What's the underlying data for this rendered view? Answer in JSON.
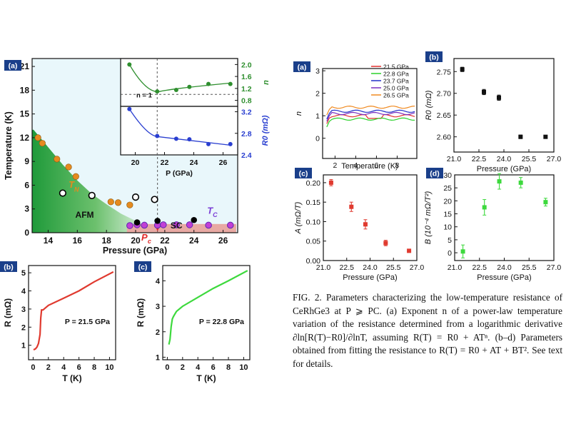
{
  "colors": {
    "afm_green": "#2e9e3e",
    "sc_red": "#d9534f",
    "tn_orange": "#e58a1f",
    "tc_purple": "#7b3fd6",
    "n_green": "#2f8f2f",
    "r0_blue": "#2a3fd0",
    "red_data": "#e03a2f",
    "green_data": "#3dd93d"
  },
  "caption": {
    "text": "FIG. 2. Parameters characterizing the low-temperature resistance of CeRhGe3 at P ⩾ PC. (a) Exponent n of a power-law temperature variation of the resistance determined from a logarithmic derivative ∂ln[R(T)−R0]/∂lnT, assuming R(T) = R0 + ATⁿ. (b–d) Parameters obtained from fitting the resistance to R(T) = R0 + AT + BT². See text for details."
  },
  "chart_data": [
    {
      "id": "left-a",
      "type": "scatter",
      "panel_label": "(a)",
      "xlabel": "Pressure (GPa)",
      "ylabel": "Temperature (K)",
      "xlim": [
        12.9,
        27
      ],
      "ylim": [
        0,
        22
      ],
      "xticks": [
        "14",
        "16",
        "18",
        "20",
        "22",
        "24",
        "26"
      ],
      "yticks": [
        "0",
        "3",
        "6",
        "9",
        "12",
        "15",
        "18",
        "21"
      ],
      "region_labels": {
        "afm": "AFM",
        "sc": "SC",
        "tn": "T_N",
        "tc": "T_C",
        "pc": "P_c"
      },
      "series": [
        {
          "name": "T_N",
          "x": [
            13.3,
            13.6,
            14.6,
            15.4,
            15.9,
            18.3,
            18.8,
            19.6
          ],
          "y": [
            12,
            11.3,
            9.3,
            8.3,
            7.1,
            3.9,
            3.8,
            3.5
          ]
        },
        {
          "name": "T_C",
          "x": [
            19.6,
            20.1,
            20.6,
            21.5,
            21.9,
            22.8,
            23.7,
            25.0,
            26.5
          ],
          "y": [
            0.9,
            1.0,
            0.95,
            0.95,
            1.0,
            1.0,
            1.0,
            0.95,
            0.95
          ]
        },
        {
          "name": "open circles",
          "x": [
            15.0,
            17.0,
            20.0,
            21.3
          ],
          "y": [
            5.0,
            4.7,
            4.5,
            4.2
          ]
        },
        {
          "name": "black filled",
          "x": [
            20.1,
            21.5,
            24.0
          ],
          "y": [
            1.3,
            1.5,
            1.6
          ]
        }
      ],
      "tn_line": {
        "x": [
          13.0,
          14.0,
          15.0,
          16.0,
          17.0,
          18.0,
          19.0,
          20.0,
          20.8
        ],
        "y": [
          13.0,
          10.8,
          8.6,
          6.6,
          4.9,
          3.6,
          2.4,
          1.5,
          0.9
        ]
      }
    },
    {
      "id": "inset-n",
      "type": "line",
      "xlim": [
        19,
        27
      ],
      "ylim": [
        0.6,
        2.2
      ],
      "ylabel": "n",
      "annotation": "n = 1",
      "yticks": [
        "0.8",
        "1.2",
        "1.6",
        "2.0"
      ],
      "x": [
        19.6,
        21.5,
        22.8,
        23.7,
        25.0,
        26.5
      ],
      "y": [
        2.0,
        1.1,
        1.15,
        1.25,
        1.35,
        1.35
      ]
    },
    {
      "id": "inset-r0",
      "type": "line",
      "xlim": [
        19,
        27
      ],
      "ylim": [
        2.4,
        3.3
      ],
      "ylabel": "R0 (mΩ)",
      "xlabel": "P (GPa)",
      "xticks": [
        "20",
        "22",
        "24",
        "26"
      ],
      "yticks": [
        "2.4",
        "2.8",
        "3.2"
      ],
      "x": [
        19.6,
        21.5,
        22.8,
        23.7,
        25.0,
        26.5
      ],
      "y": [
        3.25,
        2.75,
        2.7,
        2.69,
        2.6,
        2.6
      ]
    },
    {
      "id": "left-b",
      "type": "line",
      "panel_label": "(b)",
      "xlabel": "T (K)",
      "ylabel": "R (mΩ)",
      "annotation": "P = 21.5 GPa",
      "xlim": [
        -0.6,
        10.8
      ],
      "ylim": [
        0.2,
        5.4
      ],
      "xticks": [
        "0",
        "2",
        "4",
        "6",
        "8",
        "10"
      ],
      "yticks": [
        "1",
        "2",
        "3",
        "4",
        "5"
      ],
      "x": [
        0.05,
        0.3,
        0.5,
        0.7,
        0.9,
        1.0,
        1.1,
        1.3,
        2.0,
        4.0,
        6.0,
        8.0,
        10.5
      ],
      "y": [
        0.75,
        0.8,
        0.9,
        1.1,
        1.6,
        2.5,
        2.95,
        2.95,
        3.2,
        3.6,
        4.0,
        4.5,
        5.05
      ]
    },
    {
      "id": "left-c",
      "type": "line",
      "panel_label": "(c)",
      "xlabel": "T (K)",
      "ylabel": "R (mΩ)",
      "annotation": "P = 22.8 GPa",
      "xlim": [
        -0.6,
        10.8
      ],
      "ylim": [
        0.9,
        4.6
      ],
      "xticks": [
        "0",
        "2",
        "4",
        "6",
        "8",
        "10"
      ],
      "yticks": [
        "1",
        "2",
        "3",
        "4"
      ],
      "x": [
        0.2,
        0.35,
        0.5,
        0.65,
        0.8,
        1.0,
        1.2,
        2.0,
        4.0,
        6.0,
        8.0,
        10.5
      ],
      "y": [
        1.5,
        1.7,
        2.2,
        2.5,
        2.6,
        2.7,
        2.8,
        3.0,
        3.35,
        3.7,
        4.0,
        4.4
      ]
    },
    {
      "id": "right-a",
      "type": "line",
      "panel_label": "(a)",
      "xlabel": "Temperature (K)",
      "ylabel": "n",
      "xlim": [
        0.8,
        9.9
      ],
      "ylim": [
        -0.9,
        3.1
      ],
      "xticks": [
        "2",
        "4",
        "6",
        "8"
      ],
      "yticks": [
        "0",
        "1",
        "2",
        "3"
      ],
      "legend": [
        "21.5 GPa",
        "22.8 GPa",
        "23.7 GPa",
        "25.0 GPa",
        "26.5 GPa"
      ],
      "series": [
        {
          "name": "21.5 GPa",
          "color": "#e0312f",
          "level": 1.0
        },
        {
          "name": "22.8 GPa",
          "color": "#2ad12a",
          "level": 0.85
        },
        {
          "name": "23.7 GPa",
          "color": "#2130c8",
          "level": 1.2
        },
        {
          "name": "25.0 GPa",
          "color": "#7a2fc0",
          "level": 1.1
        },
        {
          "name": "26.5 GPa",
          "color": "#f08a20",
          "level": 1.38
        }
      ]
    },
    {
      "id": "right-b",
      "type": "scatter",
      "panel_label": "(b)",
      "xlabel": "Pressure (GPa)",
      "ylabel": "R0 (mΩ)",
      "xlim": [
        21,
        27
      ],
      "ylim": [
        2.565,
        2.78
      ],
      "xticks": [
        "21.0",
        "22.5",
        "24.0",
        "25.5",
        "27.0"
      ],
      "yticks": [
        "2.60",
        "2.65",
        "2.70",
        "2.75"
      ],
      "x": [
        21.5,
        22.8,
        23.7,
        25.0,
        26.5
      ],
      "y": [
        2.755,
        2.703,
        2.69,
        2.6,
        2.6
      ],
      "err": [
        0.005,
        0.006,
        0.006,
        0.004,
        0.002
      ]
    },
    {
      "id": "right-c",
      "type": "scatter",
      "panel_label": "(c)",
      "xlabel": "Pressure (GPa)",
      "ylabel": "A (mΩ/T)",
      "xlim": [
        21,
        27
      ],
      "ylim": [
        0,
        0.22
      ],
      "xticks": [
        "21.0",
        "22.5",
        "24.0",
        "25.5",
        "27.0"
      ],
      "yticks": [
        "0.00",
        "0.05",
        "0.10",
        "0.15",
        "0.20"
      ],
      "x": [
        21.5,
        22.8,
        23.7,
        25.0,
        26.5
      ],
      "y": [
        0.2,
        0.138,
        0.093,
        0.045,
        0.025
      ],
      "err": [
        0.008,
        0.012,
        0.012,
        0.007,
        0.004
      ]
    },
    {
      "id": "right-d",
      "type": "scatter",
      "panel_label": "(d)",
      "xlabel": "Pressure (GPa)",
      "ylabel": "B (10⁻⁴ mΩ/T²)",
      "xlim": [
        21,
        27
      ],
      "ylim": [
        -3,
        30
      ],
      "xticks": [
        "21.0",
        "22.5",
        "24.0",
        "25.5",
        "27.0"
      ],
      "yticks": [
        "0",
        "5",
        "10",
        "15",
        "20",
        "25",
        "30"
      ],
      "x": [
        21.5,
        22.8,
        23.7,
        25.0,
        26.5
      ],
      "y": [
        0.5,
        17.5,
        27.5,
        27.0,
        19.5
      ],
      "err": [
        2.5,
        3.0,
        3.0,
        2.0,
        1.5
      ]
    }
  ]
}
